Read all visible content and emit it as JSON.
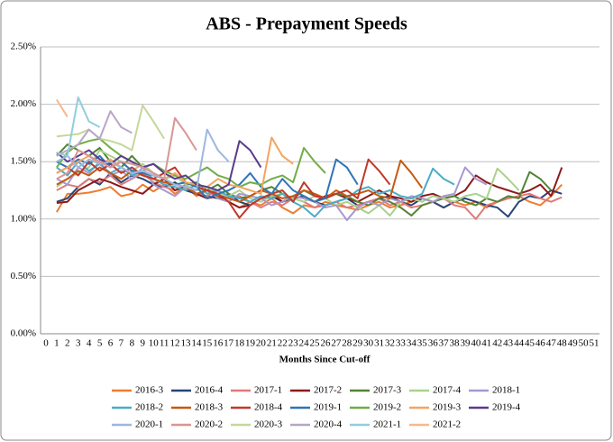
{
  "chart_data": {
    "type": "line",
    "title": "ABS - Prepayment Speeds",
    "x_label": "Months Since Cut-off",
    "categories": [
      0,
      1,
      2,
      3,
      4,
      5,
      6,
      7,
      8,
      9,
      10,
      11,
      12,
      13,
      14,
      15,
      16,
      17,
      18,
      19,
      20,
      21,
      22,
      23,
      24,
      25,
      26,
      27,
      28,
      29,
      30,
      31,
      32,
      33,
      34,
      35,
      36,
      37,
      38,
      39,
      40,
      41,
      42,
      43,
      44,
      45,
      46,
      47,
      48,
      49,
      50,
      51
    ],
    "ylim": [
      0,
      2.5
    ],
    "yticks": [
      {
        "value": 0,
        "label": "0.00%"
      },
      {
        "value": 0.5,
        "label": "0.50%"
      },
      {
        "value": 1,
        "label": "1.00%"
      },
      {
        "value": 1.5,
        "label": "1.50%"
      },
      {
        "value": 2,
        "label": "2.00%"
      },
      {
        "value": 2.5,
        "label": "2.50%"
      }
    ],
    "grid": true,
    "legend": "bottom",
    "series": [
      {
        "name": "2016-3",
        "color": "#ED7D31",
        "values": [
          null,
          1.06,
          1.22,
          1.22,
          1.23,
          1.25,
          1.28,
          1.2,
          1.22,
          1.3,
          1.24,
          1.3,
          1.22,
          1.28,
          1.2,
          1.25,
          1.18,
          1.15,
          1.1,
          1.15,
          1.12,
          1.18,
          1.1,
          1.05,
          1.12,
          1.1,
          1.15,
          1.12,
          1.1,
          1.08,
          1.12,
          1.15,
          1.1,
          1.12,
          1.15,
          1.18,
          1.15,
          1.1,
          1.15,
          1.12,
          1.15,
          1.1,
          1.15,
          1.18,
          1.2,
          1.15,
          1.12,
          1.2,
          1.3,
          null,
          null,
          null
        ]
      },
      {
        "name": "2016-4",
        "color": "#264478",
        "values": [
          null,
          1.15,
          1.18,
          1.28,
          1.35,
          1.3,
          1.4,
          1.32,
          1.38,
          1.35,
          1.3,
          1.28,
          1.32,
          1.25,
          1.22,
          1.2,
          1.18,
          1.22,
          1.15,
          1.12,
          1.18,
          1.2,
          1.15,
          1.18,
          1.2,
          1.15,
          1.12,
          1.15,
          1.18,
          1.12,
          1.15,
          1.18,
          1.2,
          1.15,
          1.12,
          1.18,
          1.15,
          1.1,
          1.15,
          1.18,
          1.15,
          1.12,
          1.1,
          1.02,
          1.15,
          1.2,
          1.18,
          1.25,
          1.22,
          null,
          null,
          null
        ]
      },
      {
        "name": "2017-1",
        "color": "#E07A7A",
        "values": [
          null,
          1.25,
          1.3,
          1.28,
          1.35,
          1.32,
          1.38,
          1.3,
          1.35,
          1.4,
          1.32,
          1.28,
          1.25,
          1.3,
          1.22,
          1.2,
          1.25,
          1.18,
          1.2,
          1.15,
          1.1,
          1.15,
          1.12,
          1.18,
          1.15,
          1.1,
          1.12,
          1.15,
          1.1,
          1.12,
          1.15,
          1.18,
          1.12,
          1.15,
          1.1,
          1.12,
          1.15,
          1.18,
          1.12,
          1.1,
          1.0,
          1.12,
          1.15,
          1.18,
          1.2,
          1.22,
          1.18,
          1.15,
          1.19,
          null,
          null,
          null
        ]
      },
      {
        "name": "2017-2",
        "color": "#8B1A1A",
        "values": [
          null,
          1.14,
          1.15,
          1.25,
          1.3,
          1.35,
          1.32,
          1.28,
          1.25,
          1.22,
          1.3,
          1.35,
          1.25,
          1.28,
          1.22,
          1.18,
          1.2,
          1.15,
          1.1,
          1.12,
          1.18,
          1.22,
          1.15,
          1.2,
          1.18,
          1.15,
          1.2,
          1.22,
          1.18,
          1.15,
          1.2,
          1.25,
          1.2,
          1.18,
          1.15,
          1.2,
          1.22,
          1.18,
          1.2,
          1.25,
          1.38,
          1.32,
          1.28,
          1.25,
          1.22,
          1.25,
          1.3,
          1.2,
          1.45,
          null,
          null,
          null
        ]
      },
      {
        "name": "2017-3",
        "color": "#548235",
        "values": [
          null,
          1.55,
          1.65,
          1.6,
          1.55,
          1.62,
          1.5,
          1.45,
          1.55,
          1.45,
          1.4,
          1.35,
          1.38,
          1.3,
          1.32,
          1.25,
          1.3,
          1.22,
          1.18,
          1.2,
          1.25,
          1.28,
          1.22,
          1.18,
          1.25,
          1.2,
          1.18,
          1.22,
          1.2,
          1.15,
          1.12,
          1.18,
          1.15,
          1.1,
          1.03,
          1.12,
          1.15,
          1.18,
          1.2,
          1.15,
          1.12,
          1.18,
          1.15,
          1.2,
          1.18,
          1.41,
          1.35,
          1.25,
          null,
          null,
          null,
          null
        ]
      },
      {
        "name": "2017-4",
        "color": "#A9D18E",
        "values": [
          null,
          1.28,
          1.35,
          1.4,
          1.45,
          1.6,
          1.55,
          1.5,
          1.42,
          1.48,
          1.4,
          1.35,
          1.38,
          1.3,
          1.25,
          1.28,
          1.22,
          1.2,
          1.25,
          1.18,
          1.15,
          1.2,
          1.22,
          1.18,
          1.15,
          1.2,
          1.18,
          1.12,
          1.15,
          1.1,
          1.05,
          1.12,
          1.03,
          1.15,
          1.18,
          1.15,
          1.2,
          1.18,
          1.15,
          1.2,
          1.22,
          1.18,
          1.44,
          1.35,
          1.25,
          null,
          null,
          null,
          null,
          null,
          null,
          null
        ]
      },
      {
        "name": "2018-1",
        "color": "#A898D0",
        "values": [
          null,
          1.35,
          1.3,
          1.45,
          1.4,
          1.5,
          1.38,
          1.42,
          1.35,
          1.45,
          1.3,
          1.25,
          1.2,
          1.28,
          1.22,
          1.25,
          1.18,
          1.15,
          1.22,
          1.2,
          1.18,
          1.12,
          1.15,
          1.2,
          1.18,
          1.15,
          1.1,
          1.12,
          0.99,
          1.1,
          1.15,
          1.12,
          1.18,
          1.15,
          1.2,
          1.18,
          1.15,
          1.2,
          1.22,
          1.45,
          1.35,
          1.3,
          null,
          null,
          null,
          null,
          null,
          null,
          null,
          null,
          null,
          null
        ]
      },
      {
        "name": "2018-2",
        "color": "#4BACC6",
        "values": [
          null,
          1.45,
          1.38,
          1.5,
          1.42,
          1.48,
          1.4,
          1.45,
          1.38,
          1.42,
          1.35,
          1.3,
          1.28,
          1.25,
          1.3,
          1.22,
          1.25,
          1.2,
          1.18,
          1.15,
          1.2,
          1.18,
          1.22,
          1.15,
          1.1,
          1.02,
          1.12,
          1.15,
          1.18,
          1.25,
          1.28,
          1.22,
          1.25,
          1.2,
          1.18,
          1.22,
          1.44,
          1.35,
          1.3,
          null,
          null,
          null,
          null,
          null,
          null,
          null,
          null,
          null,
          null,
          null,
          null,
          null
        ]
      },
      {
        "name": "2018-3",
        "color": "#C55A11",
        "values": [
          null,
          1.3,
          1.35,
          1.42,
          1.38,
          1.45,
          1.4,
          1.35,
          1.42,
          1.38,
          1.35,
          1.32,
          1.3,
          1.28,
          1.22,
          1.25,
          1.2,
          1.18,
          1.15,
          1.2,
          1.25,
          1.22,
          1.18,
          1.2,
          1.25,
          1.22,
          1.18,
          1.25,
          1.2,
          1.22,
          1.25,
          1.2,
          1.18,
          1.51,
          1.4,
          1.27,
          null,
          null,
          null,
          null,
          null,
          null,
          null,
          null,
          null,
          null,
          null,
          null,
          null,
          null,
          null,
          null
        ]
      },
      {
        "name": "2018-4",
        "color": "#C0392B",
        "values": [
          null,
          1.4,
          1.45,
          1.38,
          1.5,
          1.42,
          1.48,
          1.4,
          1.45,
          1.38,
          1.35,
          1.4,
          1.45,
          1.32,
          1.28,
          1.25,
          1.22,
          1.15,
          1.01,
          1.12,
          1.18,
          1.22,
          1.25,
          1.15,
          1.32,
          1.2,
          1.18,
          1.22,
          1.25,
          1.18,
          1.52,
          1.42,
          1.3,
          null,
          null,
          null,
          null,
          null,
          null,
          null,
          null,
          null,
          null,
          null,
          null,
          null,
          null,
          null,
          null,
          null,
          null,
          null
        ]
      },
      {
        "name": "2019-1",
        "color": "#2E75B6",
        "values": [
          null,
          1.5,
          1.45,
          1.52,
          1.48,
          1.55,
          1.45,
          1.5,
          1.42,
          1.4,
          1.38,
          1.35,
          1.3,
          1.32,
          1.28,
          1.18,
          1.22,
          1.25,
          1.3,
          1.4,
          1.28,
          1.22,
          1.35,
          1.25,
          1.2,
          1.15,
          1.18,
          1.52,
          1.45,
          1.3,
          null,
          null,
          null,
          null,
          null,
          null,
          null,
          null,
          null,
          null,
          null,
          null,
          null,
          null,
          null,
          null,
          null,
          null,
          null,
          null,
          null,
          null
        ]
      },
      {
        "name": "2019-2",
        "color": "#70AD47",
        "values": [
          null,
          1.45,
          1.58,
          1.65,
          1.68,
          1.7,
          1.62,
          1.55,
          1.5,
          1.45,
          1.48,
          1.42,
          1.38,
          1.35,
          1.4,
          1.45,
          1.38,
          1.35,
          1.28,
          1.32,
          1.3,
          1.35,
          1.38,
          1.32,
          1.62,
          1.5,
          1.4,
          null,
          null,
          null,
          null,
          null,
          null,
          null,
          null,
          null,
          null,
          null,
          null,
          null,
          null,
          null,
          null,
          null,
          null,
          null,
          null,
          null,
          null,
          null,
          null,
          null
        ]
      },
      {
        "name": "2019-3",
        "color": "#F4A460",
        "values": [
          null,
          1.4,
          1.45,
          1.5,
          1.55,
          1.48,
          1.52,
          1.45,
          1.4,
          1.42,
          1.38,
          1.35,
          1.4,
          1.32,
          1.3,
          1.28,
          1.35,
          1.3,
          1.28,
          1.25,
          1.22,
          1.71,
          1.55,
          1.48,
          null,
          null,
          null,
          null,
          null,
          null,
          null,
          null,
          null,
          null,
          null,
          null,
          null,
          null,
          null,
          null,
          null,
          null,
          null,
          null,
          null,
          null,
          null,
          null,
          null,
          null,
          null,
          null
        ]
      },
      {
        "name": "2019-4",
        "color": "#5B3A8C",
        "values": [
          null,
          1.58,
          1.5,
          1.55,
          1.6,
          1.52,
          1.48,
          1.55,
          1.5,
          1.45,
          1.48,
          1.4,
          1.35,
          1.38,
          1.3,
          1.28,
          1.25,
          1.3,
          1.68,
          1.6,
          1.45,
          null,
          null,
          null,
          null,
          null,
          null,
          null,
          null,
          null,
          null,
          null,
          null,
          null,
          null,
          null,
          null,
          null,
          null,
          null,
          null,
          null,
          null,
          null,
          null,
          null,
          null,
          null,
          null,
          null,
          null,
          null
        ]
      },
      {
        "name": "2020-1",
        "color": "#9DB7E0",
        "values": [
          null,
          1.5,
          1.55,
          1.45,
          1.52,
          1.48,
          1.5,
          1.45,
          1.4,
          1.42,
          1.38,
          1.35,
          1.3,
          1.28,
          1.25,
          1.78,
          1.6,
          1.5,
          null,
          null,
          null,
          null,
          null,
          null,
          null,
          null,
          null,
          null,
          null,
          null,
          null,
          null,
          null,
          null,
          null,
          null,
          null,
          null,
          null,
          null,
          null,
          null,
          null,
          null,
          null,
          null,
          null,
          null,
          null,
          null,
          null,
          null
        ]
      },
      {
        "name": "2020-2",
        "color": "#D99694",
        "values": [
          null,
          1.35,
          1.4,
          1.6,
          1.55,
          1.5,
          1.45,
          1.5,
          1.48,
          1.45,
          1.4,
          1.35,
          1.88,
          1.75,
          1.6,
          null,
          null,
          null,
          null,
          null,
          null,
          null,
          null,
          null,
          null,
          null,
          null,
          null,
          null,
          null,
          null,
          null,
          null,
          null,
          null,
          null,
          null,
          null,
          null,
          null,
          null,
          null,
          null,
          null,
          null,
          null,
          null,
          null,
          null,
          null,
          null,
          null
        ]
      },
      {
        "name": "2020-3",
        "color": "#C4D79B",
        "values": [
          null,
          1.72,
          1.73,
          1.74,
          1.78,
          1.7,
          1.68,
          1.65,
          1.6,
          1.99,
          1.85,
          1.7,
          null,
          null,
          null,
          null,
          null,
          null,
          null,
          null,
          null,
          null,
          null,
          null,
          null,
          null,
          null,
          null,
          null,
          null,
          null,
          null,
          null,
          null,
          null,
          null,
          null,
          null,
          null,
          null,
          null,
          null,
          null,
          null,
          null,
          null,
          null,
          null,
          null,
          null,
          null,
          null
        ]
      },
      {
        "name": "2020-4",
        "color": "#B7A6C9",
        "values": [
          null,
          1.55,
          1.6,
          1.65,
          1.78,
          1.7,
          1.94,
          1.8,
          1.75,
          null,
          null,
          null,
          null,
          null,
          null,
          null,
          null,
          null,
          null,
          null,
          null,
          null,
          null,
          null,
          null,
          null,
          null,
          null,
          null,
          null,
          null,
          null,
          null,
          null,
          null,
          null,
          null,
          null,
          null,
          null,
          null,
          null,
          null,
          null,
          null,
          null,
          null,
          null,
          null,
          null,
          null,
          null
        ]
      },
      {
        "name": "2021-1",
        "color": "#93CDDD",
        "values": [
          null,
          1.58,
          1.55,
          2.06,
          1.85,
          1.8,
          null,
          null,
          null,
          null,
          null,
          null,
          null,
          null,
          null,
          null,
          null,
          null,
          null,
          null,
          null,
          null,
          null,
          null,
          null,
          null,
          null,
          null,
          null,
          null,
          null,
          null,
          null,
          null,
          null,
          null,
          null,
          null,
          null,
          null,
          null,
          null,
          null,
          null,
          null,
          null,
          null,
          null,
          null,
          null,
          null,
          null
        ]
      },
      {
        "name": "2021-2",
        "color": "#F8B78A",
        "values": [
          null,
          2.04,
          1.89,
          null,
          null,
          null,
          null,
          null,
          null,
          null,
          null,
          null,
          null,
          null,
          null,
          null,
          null,
          null,
          null,
          null,
          null,
          null,
          null,
          null,
          null,
          null,
          null,
          null,
          null,
          null,
          null,
          null,
          null,
          null,
          null,
          null,
          null,
          null,
          null,
          null,
          null,
          null,
          null,
          null,
          null,
          null,
          null,
          null,
          null,
          null,
          null,
          null
        ]
      }
    ]
  }
}
